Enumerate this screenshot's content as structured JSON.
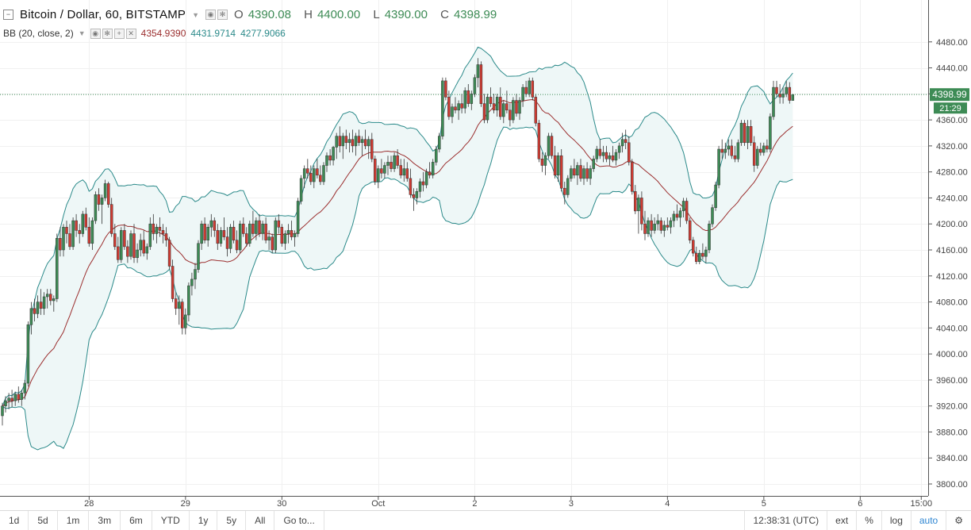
{
  "legend": {
    "symbol": "Bitcoin / Dollar, 60, BITSTAMP",
    "o_label": "O",
    "o": "4390.08",
    "h_label": "H",
    "h": "4400.00",
    "l_label": "L",
    "l": "4390.00",
    "c_label": "C",
    "c": "4398.99"
  },
  "indicator": {
    "label": "BB (20, close, 2)",
    "middle": "4354.9390",
    "upper": "4431.9714",
    "lower": "4277.9066"
  },
  "price_tag": {
    "price": "4398.99",
    "countdown": "21:29"
  },
  "colors": {
    "up": "#3d8b55",
    "down": "#cf3b32",
    "band": "#2b8a8a",
    "basis": "#9b2e2e",
    "fill": "#eef7f7",
    "accent": "#2f86d2"
  },
  "toolbar": {
    "ranges": [
      "1d",
      "5d",
      "1m",
      "3m",
      "6m",
      "YTD",
      "1y",
      "5y",
      "All"
    ],
    "goto": "Go to...",
    "time": "12:38:31 (UTC)",
    "ext": "ext",
    "percent": "%",
    "log": "log",
    "auto": "auto",
    "settings_icon": "gear-icon"
  },
  "chart_data": {
    "type": "candlestick",
    "y_ticks": [
      "3800.00",
      "3840.00",
      "3880.00",
      "3920.00",
      "3960.00",
      "4000.00",
      "4040.00",
      "4080.00",
      "4120.00",
      "4160.00",
      "4200.00",
      "4240.00",
      "4280.00",
      "4320.00",
      "4360.00",
      "4400.00",
      "4440.00",
      "4480.00"
    ],
    "ylim": [
      3780,
      4500
    ],
    "x_tick_labels": [
      "28",
      "29",
      "30",
      "Oct",
      "2",
      "3",
      "4",
      "5",
      "6",
      "15:00"
    ],
    "x_tick_index": [
      27,
      57,
      87,
      117,
      147,
      177,
      207,
      237,
      267,
      286
    ],
    "last_price": 4398.99,
    "ohlc": [
      [
        3905,
        3925,
        3890,
        3920
      ],
      [
        3920,
        3935,
        3910,
        3928
      ],
      [
        3928,
        3940,
        3915,
        3932
      ],
      [
        3932,
        3945,
        3918,
        3928
      ],
      [
        3928,
        3942,
        3920,
        3938
      ],
      [
        3938,
        3950,
        3925,
        3930
      ],
      [
        3930,
        3945,
        3920,
        3940
      ],
      [
        3940,
        3960,
        3930,
        3955
      ],
      [
        3955,
        4050,
        3950,
        4045
      ],
      [
        4045,
        4080,
        4030,
        4070
      ],
      [
        4070,
        4085,
        4050,
        4062
      ],
      [
        4062,
        4090,
        4055,
        4080
      ],
      [
        4080,
        4100,
        4060,
        4070
      ],
      [
        4070,
        4095,
        4060,
        4088
      ],
      [
        4088,
        4100,
        4070,
        4092
      ],
      [
        4092,
        4100,
        4075,
        4082
      ],
      [
        4082,
        4090,
        4065,
        4085
      ],
      [
        4085,
        4185,
        4080,
        4178
      ],
      [
        4178,
        4195,
        4150,
        4160
      ],
      [
        4160,
        4200,
        4150,
        4195
      ],
      [
        4195,
        4205,
        4170,
        4185
      ],
      [
        4185,
        4200,
        4160,
        4165
      ],
      [
        4165,
        4210,
        4160,
        4205
      ],
      [
        4205,
        4215,
        4180,
        4190
      ],
      [
        4190,
        4200,
        4170,
        4185
      ],
      [
        4185,
        4220,
        4180,
        4215
      ],
      [
        4215,
        4225,
        4190,
        4195
      ],
      [
        4195,
        4210,
        4165,
        4170
      ],
      [
        4170,
        4210,
        4160,
        4205
      ],
      [
        4205,
        4250,
        4200,
        4245
      ],
      [
        4245,
        4255,
        4220,
        4230
      ],
      [
        4230,
        4245,
        4200,
        4240
      ],
      [
        4240,
        4268,
        4235,
        4262
      ],
      [
        4262,
        4265,
        4225,
        4230
      ],
      [
        4230,
        4240,
        4180,
        4185
      ],
      [
        4185,
        4200,
        4160,
        4165
      ],
      [
        4165,
        4180,
        4140,
        4145
      ],
      [
        4145,
        4195,
        4140,
        4190
      ],
      [
        4190,
        4200,
        4160,
        4165
      ],
      [
        4165,
        4175,
        4140,
        4150
      ],
      [
        4150,
        4190,
        4145,
        4185
      ],
      [
        4185,
        4200,
        4140,
        4148
      ],
      [
        4148,
        4170,
        4140,
        4160
      ],
      [
        4160,
        4185,
        4150,
        4175
      ],
      [
        4175,
        4190,
        4150,
        4155
      ],
      [
        4155,
        4170,
        4145,
        4165
      ],
      [
        4165,
        4210,
        4160,
        4200
      ],
      [
        4200,
        4215,
        4175,
        4185
      ],
      [
        4185,
        4200,
        4170,
        4195
      ],
      [
        4195,
        4210,
        4180,
        4190
      ],
      [
        4190,
        4200,
        4170,
        4185
      ],
      [
        4185,
        4195,
        4165,
        4175
      ],
      [
        4175,
        4180,
        4130,
        4135
      ],
      [
        4135,
        4145,
        4080,
        4085
      ],
      [
        4085,
        4095,
        4060,
        4070
      ],
      [
        4070,
        4090,
        4045,
        4080
      ],
      [
        4080,
        4085,
        4030,
        4040
      ],
      [
        4040,
        4070,
        4030,
        4060
      ],
      [
        4060,
        4110,
        4050,
        4105
      ],
      [
        4105,
        4125,
        4090,
        4115
      ],
      [
        4115,
        4140,
        4100,
        4130
      ],
      [
        4130,
        4175,
        4125,
        4170
      ],
      [
        4170,
        4205,
        4160,
        4200
      ],
      [
        4200,
        4210,
        4170,
        4175
      ],
      [
        4175,
        4200,
        4165,
        4195
      ],
      [
        4195,
        4215,
        4180,
        4205
      ],
      [
        4205,
        4210,
        4180,
        4190
      ],
      [
        4190,
        4200,
        4160,
        4170
      ],
      [
        4170,
        4195,
        4165,
        4190
      ],
      [
        4190,
        4210,
        4175,
        4180
      ],
      [
        4180,
        4195,
        4150,
        4162
      ],
      [
        4162,
        4200,
        4155,
        4195
      ],
      [
        4195,
        4205,
        4170,
        4175
      ],
      [
        4175,
        4190,
        4155,
        4160
      ],
      [
        4160,
        4205,
        4155,
        4200
      ],
      [
        4200,
        4210,
        4180,
        4185
      ],
      [
        4185,
        4195,
        4165,
        4170
      ],
      [
        4170,
        4205,
        4165,
        4200
      ],
      [
        4200,
        4220,
        4180,
        4185
      ],
      [
        4185,
        4210,
        4175,
        4205
      ],
      [
        4205,
        4215,
        4180,
        4185
      ],
      [
        4185,
        4205,
        4175,
        4200
      ],
      [
        4200,
        4210,
        4170,
        4175
      ],
      [
        4175,
        4190,
        4160,
        4180
      ],
      [
        4180,
        4185,
        4155,
        4160
      ],
      [
        4160,
        4210,
        4155,
        4205
      ],
      [
        4205,
        4215,
        4185,
        4195
      ],
      [
        4195,
        4200,
        4165,
        4170
      ],
      [
        4170,
        4190,
        4160,
        4185
      ],
      [
        4185,
        4200,
        4170,
        4190
      ],
      [
        4190,
        4205,
        4175,
        4180
      ],
      [
        4180,
        4190,
        4165,
        4185
      ],
      [
        4185,
        4240,
        4180,
        4235
      ],
      [
        4235,
        4275,
        4230,
        4270
      ],
      [
        4270,
        4290,
        4255,
        4285
      ],
      [
        4285,
        4300,
        4270,
        4278
      ],
      [
        4278,
        4290,
        4260,
        4265
      ],
      [
        4265,
        4290,
        4255,
        4285
      ],
      [
        4285,
        4300,
        4270,
        4275
      ],
      [
        4275,
        4290,
        4260,
        4265
      ],
      [
        4265,
        4295,
        4260,
        4290
      ],
      [
        4290,
        4310,
        4280,
        4305
      ],
      [
        4305,
        4315,
        4290,
        4298
      ],
      [
        4298,
        4320,
        4290,
        4318
      ],
      [
        4318,
        4340,
        4300,
        4335
      ],
      [
        4335,
        4350,
        4310,
        4320
      ],
      [
        4320,
        4340,
        4300,
        4335
      ],
      [
        4335,
        4345,
        4315,
        4325
      ],
      [
        4325,
        4340,
        4310,
        4330
      ],
      [
        4330,
        4345,
        4310,
        4320
      ],
      [
        4320,
        4340,
        4305,
        4335
      ],
      [
        4335,
        4345,
        4320,
        4325
      ],
      [
        4325,
        4335,
        4305,
        4330
      ],
      [
        4330,
        4345,
        4315,
        4320
      ],
      [
        4320,
        4335,
        4300,
        4330
      ],
      [
        4330,
        4340,
        4295,
        4300
      ],
      [
        4300,
        4305,
        4260,
        4265
      ],
      [
        4265,
        4290,
        4255,
        4285
      ],
      [
        4285,
        4300,
        4270,
        4278
      ],
      [
        4278,
        4295,
        4270,
        4290
      ],
      [
        4290,
        4305,
        4275,
        4295
      ],
      [
        4295,
        4305,
        4280,
        4285
      ],
      [
        4285,
        4310,
        4280,
        4305
      ],
      [
        4305,
        4315,
        4285,
        4290
      ],
      [
        4290,
        4300,
        4270,
        4275
      ],
      [
        4275,
        4300,
        4265,
        4285
      ],
      [
        4285,
        4295,
        4265,
        4270
      ],
      [
        4270,
        4285,
        4240,
        4245
      ],
      [
        4245,
        4255,
        4220,
        4240
      ],
      [
        4240,
        4255,
        4230,
        4250
      ],
      [
        4250,
        4270,
        4240,
        4265
      ],
      [
        4265,
        4280,
        4250,
        4260
      ],
      [
        4260,
        4285,
        4255,
        4280
      ],
      [
        4280,
        4295,
        4270,
        4275
      ],
      [
        4275,
        4300,
        4270,
        4295
      ],
      [
        4295,
        4320,
        4290,
        4315
      ],
      [
        4315,
        4340,
        4310,
        4335
      ],
      [
        4335,
        4425,
        4330,
        4420
      ],
      [
        4420,
        4425,
        4390,
        4395
      ],
      [
        4395,
        4405,
        4360,
        4365
      ],
      [
        4365,
        4385,
        4355,
        4380
      ],
      [
        4380,
        4395,
        4370,
        4375
      ],
      [
        4375,
        4390,
        4360,
        4385
      ],
      [
        4385,
        4400,
        4370,
        4378
      ],
      [
        4378,
        4410,
        4370,
        4405
      ],
      [
        4405,
        4415,
        4380,
        4385
      ],
      [
        4385,
        4405,
        4375,
        4400
      ],
      [
        4400,
        4430,
        4395,
        4425
      ],
      [
        4425,
        4455,
        4410,
        4445
      ],
      [
        4445,
        4450,
        4380,
        4385
      ],
      [
        4385,
        4400,
        4355,
        4360
      ],
      [
        4360,
        4400,
        4355,
        4395
      ],
      [
        4395,
        4410,
        4380,
        4385
      ],
      [
        4385,
        4400,
        4370,
        4375
      ],
      [
        4375,
        4400,
        4365,
        4395
      ],
      [
        4395,
        4410,
        4360,
        4365
      ],
      [
        4365,
        4390,
        4355,
        4385
      ],
      [
        4385,
        4405,
        4370,
        4375
      ],
      [
        4375,
        4385,
        4350,
        4360
      ],
      [
        4360,
        4395,
        4355,
        4390
      ],
      [
        4390,
        4400,
        4365,
        4370
      ],
      [
        4370,
        4395,
        4360,
        4390
      ],
      [
        4390,
        4415,
        4380,
        4410
      ],
      [
        4410,
        4420,
        4395,
        4400
      ],
      [
        4400,
        4425,
        4395,
        4420
      ],
      [
        4420,
        4425,
        4390,
        4395
      ],
      [
        4395,
        4400,
        4350,
        4355
      ],
      [
        4355,
        4360,
        4295,
        4300
      ],
      [
        4300,
        4310,
        4280,
        4290
      ],
      [
        4290,
        4310,
        4275,
        4305
      ],
      [
        4305,
        4340,
        4300,
        4335
      ],
      [
        4335,
        4340,
        4300,
        4305
      ],
      [
        4305,
        4320,
        4270,
        4275
      ],
      [
        4275,
        4310,
        4265,
        4305
      ],
      [
        4305,
        4315,
        4250,
        4255
      ],
      [
        4255,
        4265,
        4230,
        4245
      ],
      [
        4245,
        4275,
        4240,
        4270
      ],
      [
        4270,
        4290,
        4265,
        4285
      ],
      [
        4285,
        4300,
        4270,
        4275
      ],
      [
        4275,
        4295,
        4260,
        4290
      ],
      [
        4290,
        4300,
        4265,
        4270
      ],
      [
        4270,
        4290,
        4260,
        4285
      ],
      [
        4285,
        4295,
        4265,
        4270
      ],
      [
        4270,
        4290,
        4260,
        4285
      ],
      [
        4285,
        4305,
        4280,
        4300
      ],
      [
        4300,
        4320,
        4295,
        4315
      ],
      [
        4315,
        4330,
        4300,
        4305
      ],
      [
        4305,
        4320,
        4295,
        4310
      ],
      [
        4310,
        4320,
        4295,
        4300
      ],
      [
        4300,
        4310,
        4290,
        4305
      ],
      [
        4305,
        4320,
        4295,
        4298
      ],
      [
        4298,
        4315,
        4290,
        4310
      ],
      [
        4310,
        4325,
        4300,
        4320
      ],
      [
        4320,
        4340,
        4310,
        4330
      ],
      [
        4330,
        4345,
        4315,
        4325
      ],
      [
        4325,
        4335,
        4290,
        4295
      ],
      [
        4295,
        4300,
        4245,
        4250
      ],
      [
        4250,
        4260,
        4215,
        4220
      ],
      [
        4220,
        4245,
        4185,
        4240
      ],
      [
        4240,
        4250,
        4190,
        4200
      ],
      [
        4200,
        4220,
        4175,
        4185
      ],
      [
        4185,
        4210,
        4180,
        4205
      ],
      [
        4205,
        4215,
        4180,
        4190
      ],
      [
        4190,
        4210,
        4185,
        4200
      ],
      [
        4200,
        4215,
        4190,
        4205
      ],
      [
        4205,
        4210,
        4185,
        4190
      ],
      [
        4190,
        4205,
        4180,
        4198
      ],
      [
        4198,
        4210,
        4190,
        4195
      ],
      [
        4195,
        4210,
        4185,
        4205
      ],
      [
        4205,
        4220,
        4195,
        4215
      ],
      [
        4215,
        4230,
        4205,
        4210
      ],
      [
        4210,
        4225,
        4195,
        4220
      ],
      [
        4220,
        4240,
        4210,
        4235
      ],
      [
        4235,
        4240,
        4200,
        4205
      ],
      [
        4205,
        4210,
        4170,
        4175
      ],
      [
        4175,
        4180,
        4150,
        4155
      ],
      [
        4155,
        4165,
        4138,
        4142
      ],
      [
        4142,
        4160,
        4138,
        4155
      ],
      [
        4155,
        4170,
        4145,
        4150
      ],
      [
        4150,
        4165,
        4140,
        4160
      ],
      [
        4160,
        4205,
        4155,
        4200
      ],
      [
        4200,
        4230,
        4195,
        4225
      ],
      [
        4225,
        4265,
        4220,
        4260
      ],
      [
        4260,
        4320,
        4255,
        4315
      ],
      [
        4315,
        4330,
        4300,
        4310
      ],
      [
        4310,
        4325,
        4300,
        4315
      ],
      [
        4315,
        4330,
        4305,
        4320
      ],
      [
        4320,
        4330,
        4300,
        4305
      ],
      [
        4305,
        4320,
        4295,
        4300
      ],
      [
        4300,
        4330,
        4295,
        4325
      ],
      [
        4325,
        4360,
        4320,
        4355
      ],
      [
        4355,
        4360,
        4320,
        4325
      ],
      [
        4325,
        4360,
        4315,
        4350
      ],
      [
        4350,
        4360,
        4320,
        4325
      ],
      [
        4325,
        4335,
        4280,
        4290
      ],
      [
        4290,
        4320,
        4285,
        4315
      ],
      [
        4315,
        4325,
        4305,
        4310
      ],
      [
        4310,
        4325,
        4305,
        4320
      ],
      [
        4320,
        4330,
        4310,
        4315
      ],
      [
        4315,
        4370,
        4310,
        4365
      ],
      [
        4365,
        4420,
        4360,
        4410
      ],
      [
        4410,
        4420,
        4395,
        4400
      ],
      [
        4400,
        4415,
        4385,
        4395
      ],
      [
        4395,
        4410,
        4385,
        4400
      ],
      [
        4400,
        4420,
        4395,
        4410
      ],
      [
        4410,
        4418,
        4385,
        4390
      ],
      [
        4390,
        4400,
        4390,
        4399
      ]
    ]
  }
}
